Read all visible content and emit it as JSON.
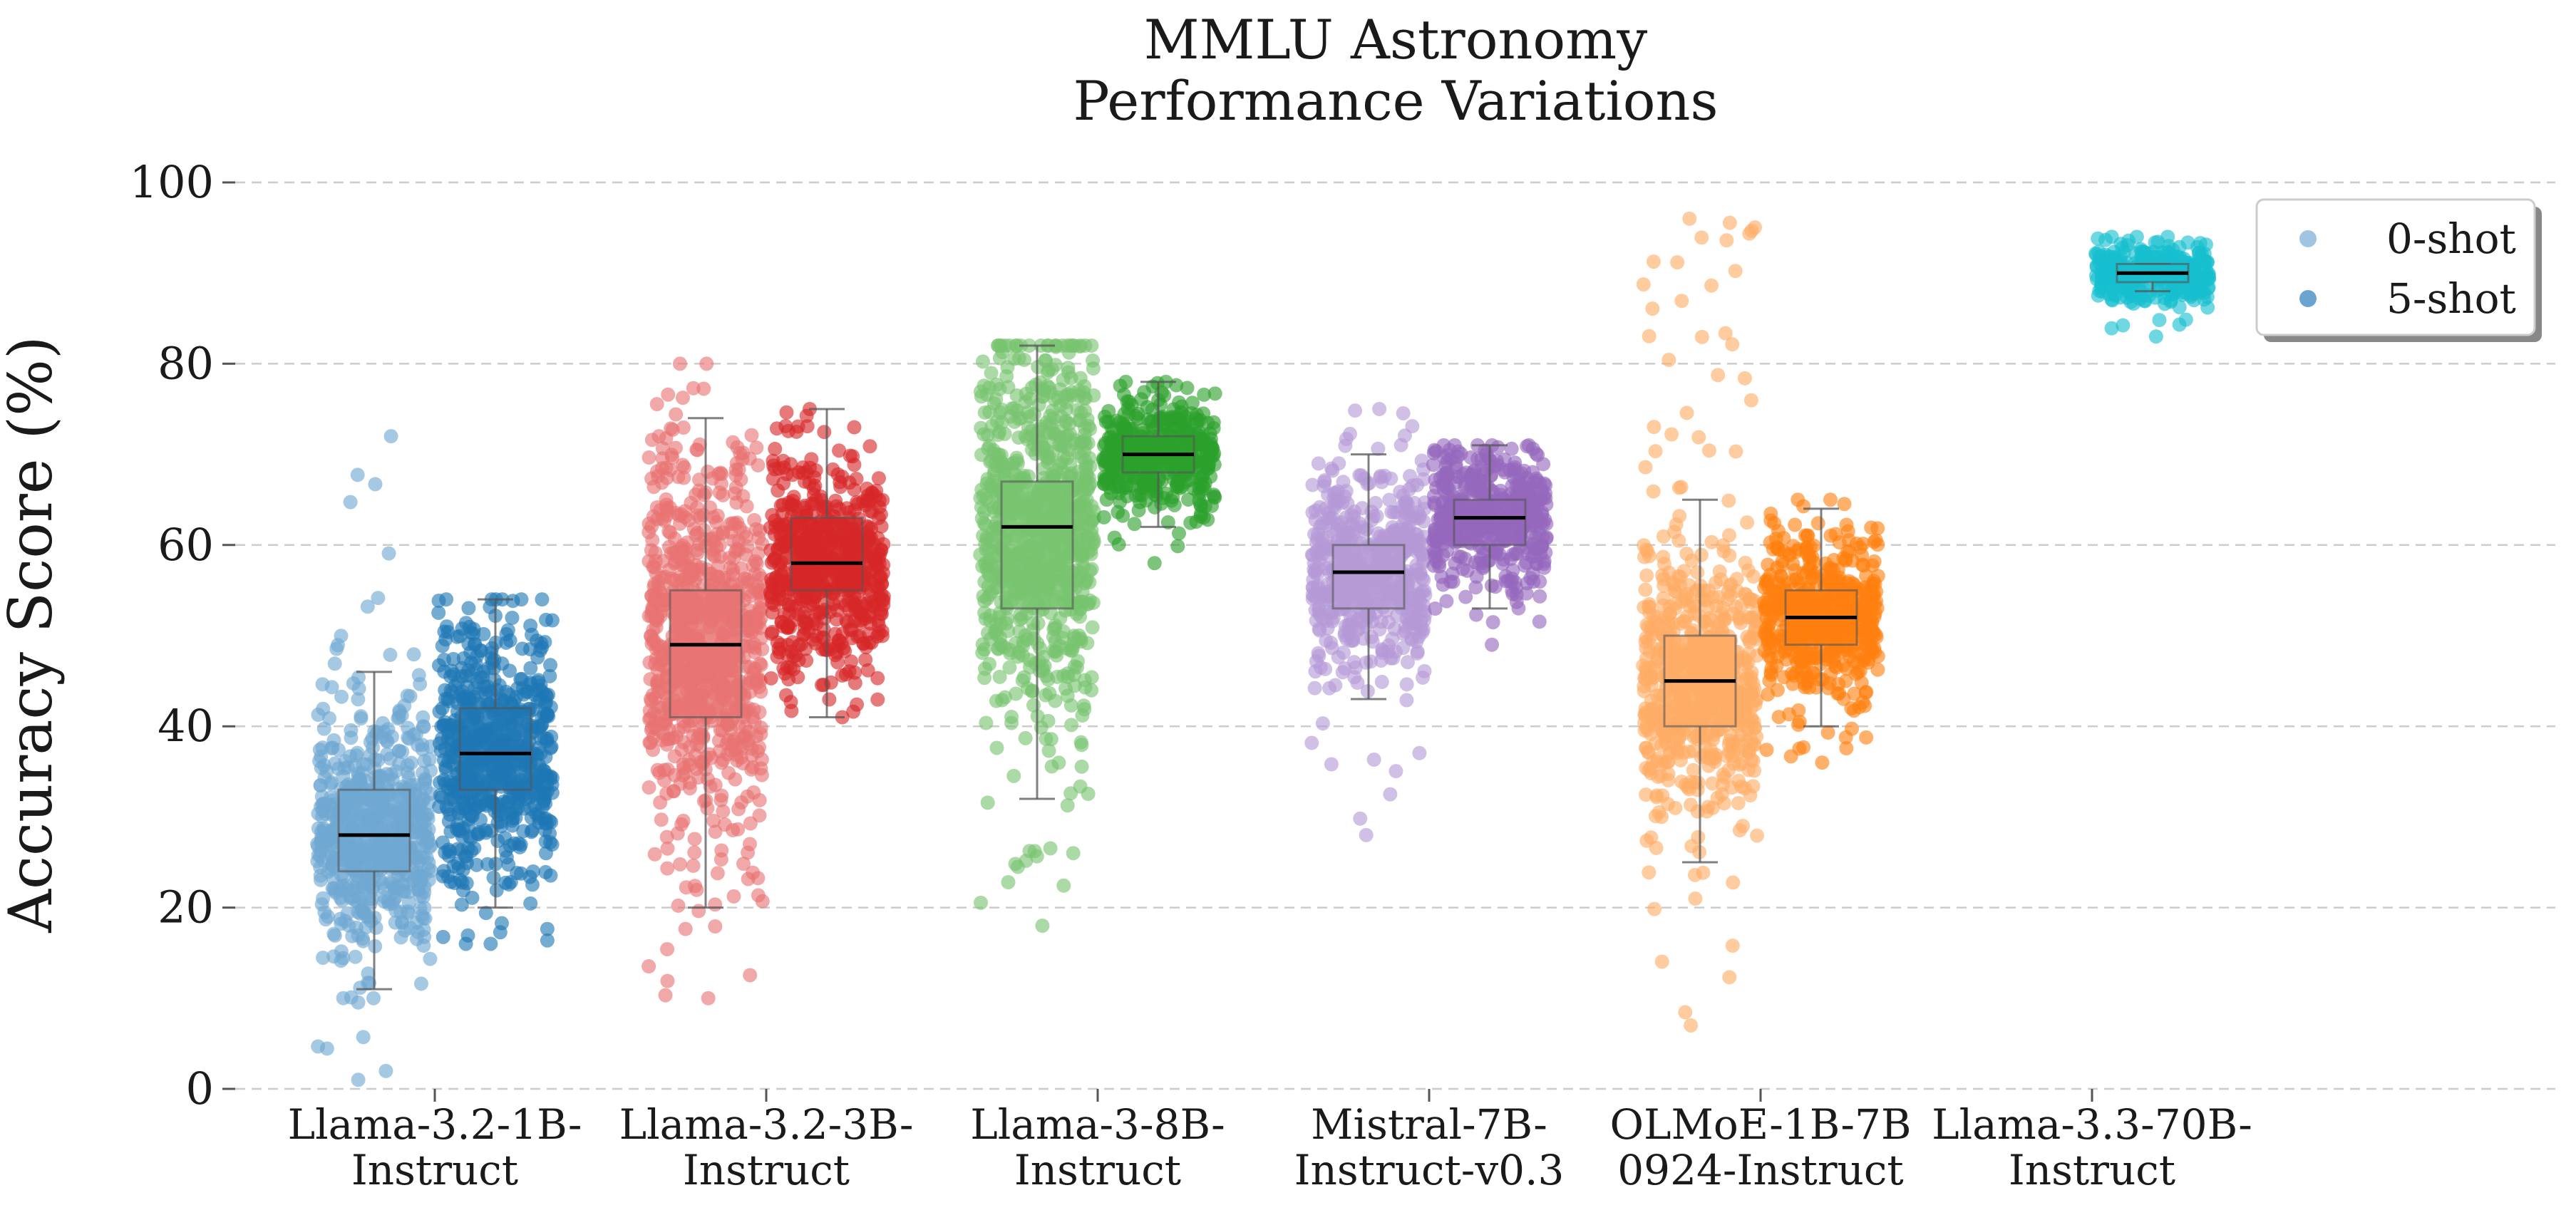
{
  "chart_data": {
    "type": "box-strip",
    "title": "MMLU Astronomy\nPerformance Variations",
    "xlabel": "",
    "ylabel": "Accuracy Score (%)",
    "ylim": [
      0,
      100
    ],
    "yticks": [
      0,
      20,
      40,
      60,
      80,
      100
    ],
    "grid": "horizontal dashed",
    "legend": {
      "position": "top-right",
      "entries": [
        "0-shot",
        "5-shot"
      ],
      "colors": [
        "#7fb1d8",
        "#3a86c0"
      ]
    },
    "categories": [
      "Llama-3.2-1B-\nInstruct",
      "Llama-3.2-3B-\nInstruct",
      "Llama-3-8B-\nInstruct",
      "Mistral-7B-\nInstruct-v0.3",
      "OLMoE-1B-7B\n0924-Instruct",
      "Llama-3.3-70B-\nInstruct"
    ],
    "series": [
      {
        "name": "0-shot",
        "groups": [
          {
            "category": "Llama-3.2-1B-\nInstruct",
            "color": "#6fa8d2",
            "whisker_low": 11,
            "q1": 24,
            "median": 28,
            "q3": 33,
            "whisker_high": 46,
            "point_min": 1,
            "point_max": 72
          },
          {
            "category": "Llama-3.2-3B-\nInstruct",
            "color": "#e87373",
            "whisker_low": 20,
            "q1": 41,
            "median": 49,
            "q3": 55,
            "whisker_high": 74,
            "point_min": 10,
            "point_max": 80
          },
          {
            "category": "Llama-3-8B-\nInstruct",
            "color": "#78c470",
            "whisker_low": 32,
            "q1": 53,
            "median": 62,
            "q3": 67,
            "whisker_high": 82,
            "point_min": 18,
            "point_max": 82
          },
          {
            "category": "Mistral-7B-\nInstruct-v0.3",
            "color": "#b59ad6",
            "whisker_low": 43,
            "q1": 53,
            "median": 57,
            "q3": 60,
            "whisker_high": 70,
            "point_min": 28,
            "point_max": 75
          },
          {
            "category": "OLMoE-1B-7B\n0924-Instruct",
            "color": "#ffac66",
            "whisker_low": 25,
            "q1": 40,
            "median": 45,
            "q3": 50,
            "whisker_high": 65,
            "point_min": 7,
            "point_max": 96
          }
        ]
      },
      {
        "name": "5-shot",
        "groups": [
          {
            "category": "Llama-3.2-1B-\nInstruct",
            "color": "#1f77b4",
            "whisker_low": 20,
            "q1": 33,
            "median": 37,
            "q3": 42,
            "whisker_high": 54,
            "point_min": 16,
            "point_max": 54
          },
          {
            "category": "Llama-3.2-3B-\nInstruct",
            "color": "#d62728",
            "whisker_low": 41,
            "q1": 55,
            "median": 58,
            "q3": 63,
            "whisker_high": 75,
            "point_min": 41,
            "point_max": 75
          },
          {
            "category": "Llama-3-8B-\nInstruct",
            "color": "#2ca02c",
            "whisker_low": 62,
            "q1": 68,
            "median": 70,
            "q3": 72,
            "whisker_high": 78,
            "point_min": 58,
            "point_max": 78
          },
          {
            "category": "Mistral-7B-\nInstruct-v0.3",
            "color": "#9467bd",
            "whisker_low": 53,
            "q1": 60,
            "median": 63,
            "q3": 65,
            "whisker_high": 71,
            "point_min": 49,
            "point_max": 71
          },
          {
            "category": "OLMoE-1B-7B\n0924-Instruct",
            "color": "#ff7f0e",
            "whisker_low": 40,
            "q1": 49,
            "median": 52,
            "q3": 55,
            "whisker_high": 64,
            "point_min": 36,
            "point_max": 65
          },
          {
            "category": "Llama-3.3-70B-\nInstruct",
            "color": "#17becf",
            "whisker_low": 88,
            "q1": 89,
            "median": 90,
            "q3": 91,
            "whisker_high": 91,
            "point_min": 83,
            "point_max": 94
          }
        ]
      }
    ]
  }
}
